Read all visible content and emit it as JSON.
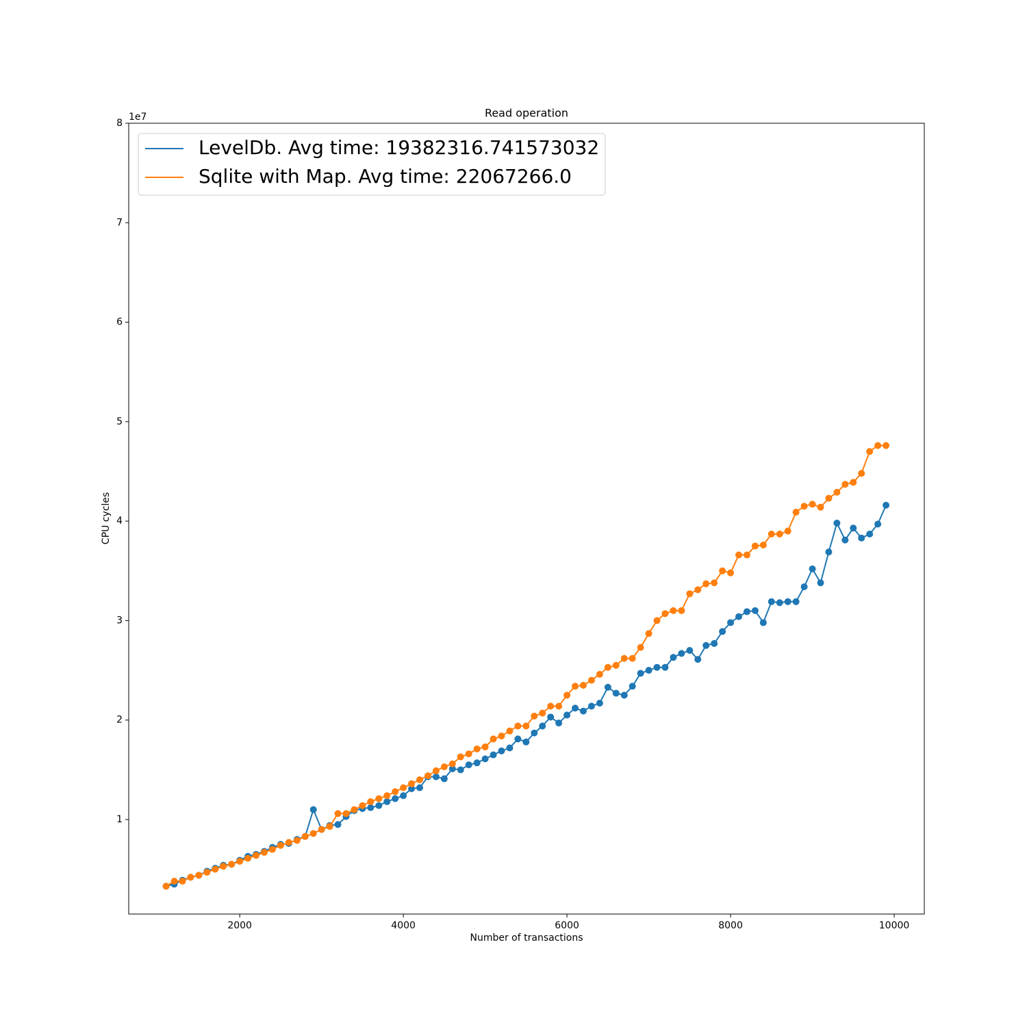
{
  "chart_data": {
    "type": "line",
    "title": "Read operation",
    "x_label": "Number of transactions",
    "y_label": "CPU cycles",
    "y_offset_label": "1e7",
    "x": [
      1100,
      1200,
      1300,
      1400,
      1500,
      1600,
      1700,
      1800,
      1900,
      2000,
      2100,
      2200,
      2300,
      2400,
      2500,
      2600,
      2700,
      2800,
      2900,
      3000,
      3100,
      3200,
      3300,
      3400,
      3500,
      3600,
      3700,
      3800,
      3900,
      4000,
      4100,
      4200,
      4300,
      4400,
      4500,
      4600,
      4700,
      4800,
      4900,
      5000,
      5100,
      5200,
      5300,
      5400,
      5500,
      5600,
      5700,
      5800,
      5900,
      6000,
      6100,
      6200,
      6300,
      6400,
      6500,
      6600,
      6700,
      6800,
      6900,
      7000,
      7100,
      7200,
      7300,
      7400,
      7500,
      7600,
      7700,
      7800,
      7900,
      8000,
      8100,
      8200,
      8300,
      8400,
      8500,
      8600,
      8700,
      8800,
      8900,
      9000,
      9100,
      9200,
      9300,
      9400,
      9500,
      9600,
      9700,
      9800,
      9900
    ],
    "series": [
      {
        "name": "LevelDb. Avg time: 19382316.741573032",
        "color": "#1f77b4",
        "values": [
          3300000,
          3500000,
          3900000,
          4200000,
          4400000,
          4800000,
          5100000,
          5400000,
          5500000,
          5900000,
          6300000,
          6500000,
          6800000,
          7200000,
          7500000,
          7600000,
          8000000,
          8300000,
          11000000,
          9000000,
          9400000,
          9500000,
          10300000,
          10900000,
          11100000,
          11200000,
          11400000,
          11800000,
          12100000,
          12400000,
          13100000,
          13200000,
          14300000,
          14300000,
          14100000,
          15100000,
          15000000,
          15500000,
          15700000,
          16100000,
          16500000,
          16900000,
          17200000,
          18100000,
          17800000,
          18700000,
          19400000,
          20300000,
          19700000,
          20500000,
          21200000,
          20900000,
          21400000,
          21700000,
          23300000,
          22700000,
          22500000,
          23400000,
          24700000,
          25000000,
          25300000,
          25300000,
          26300000,
          26700000,
          27000000,
          26100000,
          27500000,
          27700000,
          28900000,
          29800000,
          30400000,
          30900000,
          31000000,
          29800000,
          31900000,
          31800000,
          31900000,
          31900000,
          33400000,
          35200000,
          33800000,
          36900000,
          39800000,
          38100000,
          39300000,
          38300000,
          38700000,
          39700000,
          41600000
        ]
      },
      {
        "name": "Sqlite with Map. Avg time: 22067266.0",
        "color": "#ff7f0e",
        "values": [
          3300000,
          3800000,
          3800000,
          4200000,
          4400000,
          4700000,
          5000000,
          5300000,
          5500000,
          5800000,
          6100000,
          6400000,
          6700000,
          7000000,
          7400000,
          7700000,
          7900000,
          8300000,
          8600000,
          9000000,
          9300000,
          10600000,
          10600000,
          11000000,
          11400000,
          11800000,
          12100000,
          12400000,
          12800000,
          13200000,
          13600000,
          14000000,
          14400000,
          14900000,
          15300000,
          15600000,
          16300000,
          16600000,
          17100000,
          17300000,
          18100000,
          18400000,
          18900000,
          19400000,
          19400000,
          20400000,
          20700000,
          21400000,
          21400000,
          22500000,
          23400000,
          23500000,
          24000000,
          24600000,
          25300000,
          25500000,
          26200000,
          26200000,
          27300000,
          28700000,
          30000000,
          30700000,
          31000000,
          31000000,
          32700000,
          33100000,
          33700000,
          33800000,
          35000000,
          34800000,
          36600000,
          36600000,
          37500000,
          37600000,
          38700000,
          38700000,
          39000000,
          40900000,
          41500000,
          41700000,
          41400000,
          42300000,
          42900000,
          43700000,
          43900000,
          44800000,
          47000000,
          47600000,
          47600000
        ]
      }
    ],
    "xlim": [
      643,
      10368
    ],
    "xticks": [
      2000,
      4000,
      6000,
      8000,
      10000
    ],
    "ylim": [
      500000,
      80000000
    ],
    "yticks": [
      {
        "value": 10000000,
        "label": "1"
      },
      {
        "value": 20000000,
        "label": "2"
      },
      {
        "value": 30000000,
        "label": "3"
      },
      {
        "value": 40000000,
        "label": "4"
      },
      {
        "value": 50000000,
        "label": "5"
      },
      {
        "value": 60000000,
        "label": "6"
      },
      {
        "value": 70000000,
        "label": "7"
      },
      {
        "value": 80000000,
        "label": "8"
      }
    ],
    "legend": "upper left",
    "grid": false
  }
}
